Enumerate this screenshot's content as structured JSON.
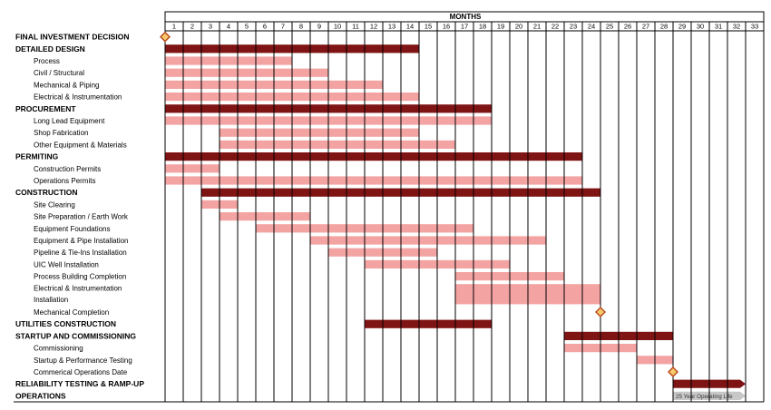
{
  "chart_data": {
    "type": "gantt",
    "header": "MONTHS",
    "months": [
      "1",
      "2",
      "3",
      "4",
      "5",
      "6",
      "7",
      "8",
      "9",
      "10",
      "11",
      "12",
      "13",
      "14",
      "15",
      "16",
      "17",
      "18",
      "19",
      "20",
      "21",
      "22",
      "23",
      "24",
      "25",
      "26",
      "27",
      "28",
      "29",
      "30",
      "31",
      "32",
      "33"
    ],
    "colors": {
      "summary": "#7f1414",
      "detail": "#f4a3a3",
      "milestone_fill": "#f6c96a",
      "milestone_stroke": "#b5451a",
      "operations": "#c8c8c8"
    },
    "tasks": [
      {
        "label": "FINAL INVESTMENT DECISION",
        "bold": true,
        "milestone": 0
      },
      {
        "label": "DETAILED DESIGN",
        "bold": true,
        "kind": "summary",
        "start": 0,
        "end": 14
      },
      {
        "label": "Process",
        "kind": "detail",
        "start": 0,
        "end": 7
      },
      {
        "label": "Civil / Structural",
        "kind": "detail",
        "start": 0,
        "end": 9
      },
      {
        "label": "Mechanical & Piping",
        "kind": "detail",
        "start": 0,
        "end": 12
      },
      {
        "label": "Electrical & Instrumentation",
        "kind": "detail",
        "start": 0,
        "end": 14
      },
      {
        "label": "PROCUREMENT",
        "bold": true,
        "kind": "summary",
        "start": 0,
        "end": 18
      },
      {
        "label": "Long Lead Equipment",
        "kind": "detail",
        "start": 0,
        "end": 18
      },
      {
        "label": "Shop Fabrication",
        "kind": "detail",
        "start": 3,
        "end": 14
      },
      {
        "label": "Other Equipment & Materials",
        "kind": "detail",
        "start": 3,
        "end": 16
      },
      {
        "label": "PERMITING",
        "bold": true,
        "kind": "summary",
        "start": 0,
        "end": 23
      },
      {
        "label": "Construction Permits",
        "kind": "detail",
        "start": 0,
        "end": 3
      },
      {
        "label": "Operations Permits",
        "kind": "detail",
        "start": 0,
        "end": 23
      },
      {
        "label": "CONSTRUCTION",
        "bold": true,
        "kind": "summary",
        "start": 2,
        "end": 24
      },
      {
        "label": "Site Clearing",
        "kind": "detail",
        "start": 2,
        "end": 4
      },
      {
        "label": "Site Preparation / Earth Work",
        "kind": "detail",
        "start": 3,
        "end": 8
      },
      {
        "label": "Equipment Foundations",
        "kind": "detail",
        "start": 5,
        "end": 17
      },
      {
        "label": "Equipment & Pipe Installation",
        "kind": "detail",
        "start": 8,
        "end": 21
      },
      {
        "label": "Pipeline & Tie-Ins Installation",
        "kind": "detail",
        "start": 9,
        "end": 15
      },
      {
        "label": "UIC Well Installation",
        "kind": "detail",
        "start": 11,
        "end": 19
      },
      {
        "label": "Process Building Completion",
        "kind": "detail",
        "start": 16,
        "end": 22
      },
      {
        "label": "Electrical & Instrumentation",
        "label2": "Installation",
        "kind": "detail",
        "start": 16,
        "end": 24,
        "tall": true
      },
      {
        "label": "Mechanical Completion",
        "milestone": 24
      },
      {
        "label": "UTILITIES CONSTRUCTION",
        "bold": true,
        "kind": "summary",
        "start": 11,
        "end": 18
      },
      {
        "label": "STARTUP AND COMMISSIONING",
        "bold": true,
        "kind": "summary",
        "start": 22,
        "end": 28
      },
      {
        "label": "Commissioning",
        "kind": "detail",
        "start": 22,
        "end": 26
      },
      {
        "label": "Startup & Performance Testing",
        "kind": "detail",
        "start": 26,
        "end": 28
      },
      {
        "label": "Commerical Operations Date",
        "milestone": 28
      },
      {
        "label": "RELIABILITY TESTING & RAMP-UP",
        "bold": true,
        "kind": "summary",
        "start": 28,
        "end": 32,
        "arrow": true
      },
      {
        "label": "OPERATIONS",
        "bold": true,
        "kind": "operations",
        "start": 28,
        "end": 32,
        "arrow": true,
        "bar_text": "25 Year Operating Life"
      }
    ]
  }
}
